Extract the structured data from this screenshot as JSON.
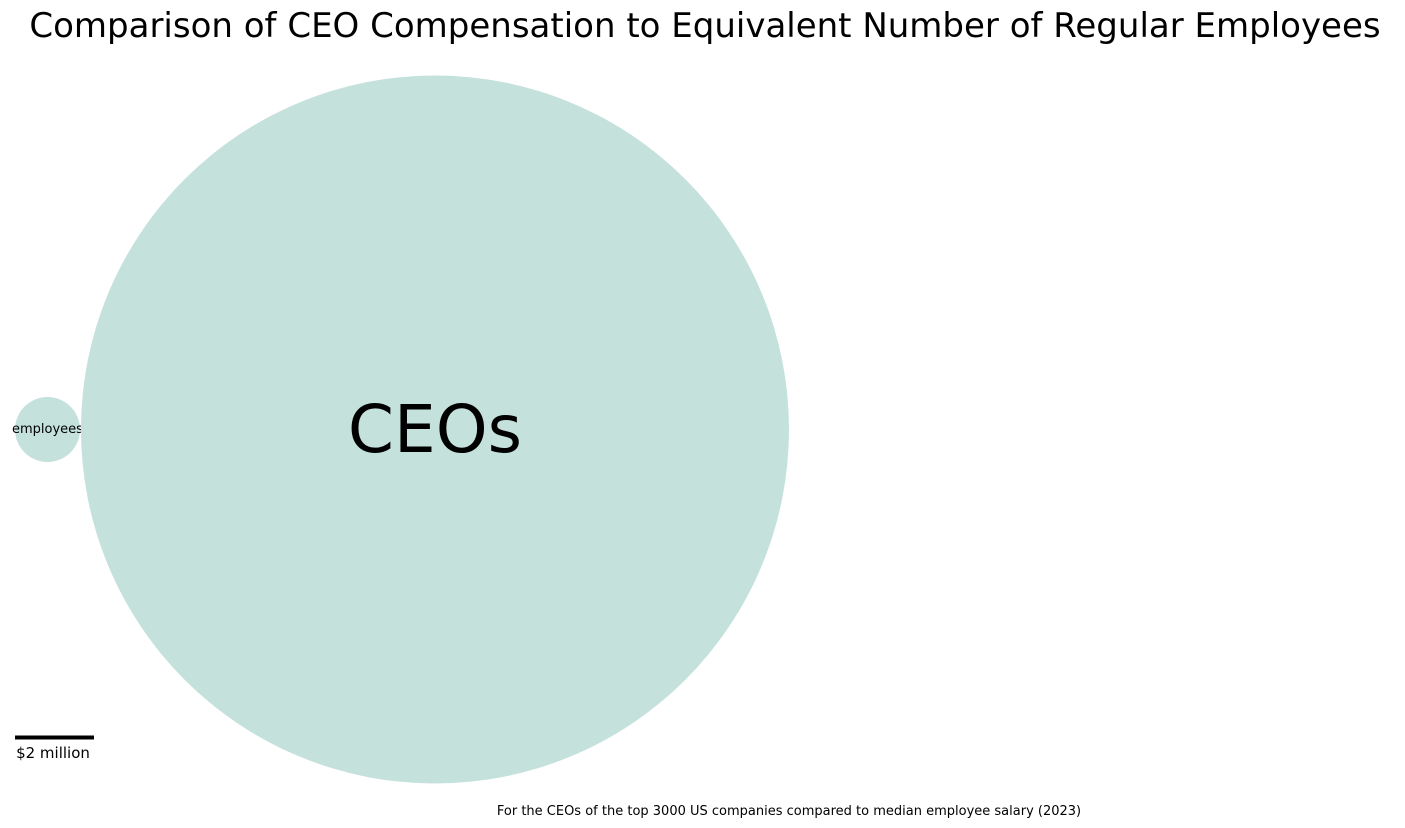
{
  "chart_data": {
    "type": "bubble",
    "title": "Comparison of CEO Compensation to Equivalent Number of Regular Employees",
    "caption": "For the CEOs of the top 3000 US companies compared to median employee salary (2023)",
    "bubble_color": "#c4e1dc",
    "bubbles": [
      {
        "label": "employees",
        "relative_size": 1
      },
      {
        "label": "CEOs",
        "relative_size": 118.7
      }
    ],
    "scale_bar": {
      "label": "$2 million"
    }
  }
}
